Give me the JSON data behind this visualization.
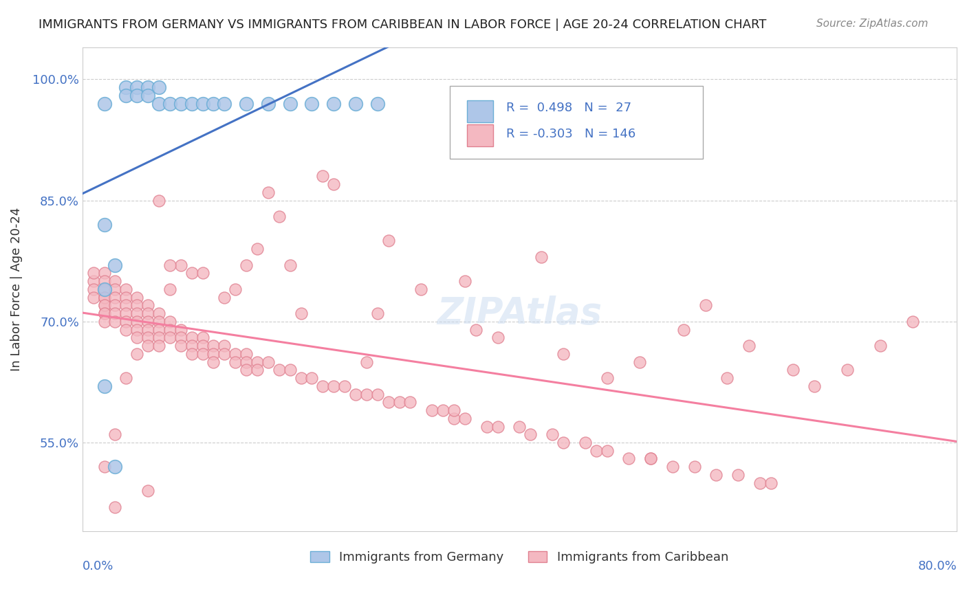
{
  "title": "IMMIGRANTS FROM GERMANY VS IMMIGRANTS FROM CARIBBEAN IN LABOR FORCE | AGE 20-24 CORRELATION CHART",
  "source": "Source: ZipAtlas.com",
  "xlabel_bottom_left": "0.0%",
  "xlabel_bottom_right": "80.0%",
  "ylabel": "In Labor Force | Age 20-24",
  "y_ticks": [
    55.0,
    70.0,
    85.0,
    100.0
  ],
  "y_tick_labels": [
    "55.0%",
    "70.0%",
    "85.0%",
    "100.0%"
  ],
  "xlim": [
    0.0,
    0.8
  ],
  "ylim": [
    0.44,
    1.04
  ],
  "germany_color": "#aec6e8",
  "germany_edge_color": "#6baed6",
  "caribbean_color": "#f4b8c1",
  "caribbean_edge_color": "#e08090",
  "trend_germany_color": "#4472c4",
  "trend_caribbean_color": "#f47fa0",
  "legend_r_germany": "0.498",
  "legend_n_germany": "27",
  "legend_r_caribbean": "-0.303",
  "legend_n_caribbean": "146",
  "legend_label_germany": "Immigrants from Germany",
  "legend_label_caribbean": "Immigrants from Caribbean",
  "title_color": "#222222",
  "axis_color": "#4472c4",
  "grid_color": "#cccccc",
  "background_color": "#ffffff",
  "germany_x": [
    0.02,
    0.04,
    0.05,
    0.06,
    0.07,
    0.04,
    0.05,
    0.06,
    0.07,
    0.08,
    0.09,
    0.1,
    0.11,
    0.12,
    0.13,
    0.15,
    0.17,
    0.19,
    0.21,
    0.23,
    0.25,
    0.27,
    0.02,
    0.03,
    0.02,
    0.03,
    0.02
  ],
  "germany_y": [
    0.97,
    0.99,
    0.99,
    0.99,
    0.99,
    0.98,
    0.98,
    0.98,
    0.97,
    0.97,
    0.97,
    0.97,
    0.97,
    0.97,
    0.97,
    0.97,
    0.97,
    0.97,
    0.97,
    0.97,
    0.97,
    0.97,
    0.82,
    0.77,
    0.62,
    0.52,
    0.74
  ],
  "caribbean_x": [
    0.01,
    0.01,
    0.01,
    0.01,
    0.02,
    0.02,
    0.02,
    0.02,
    0.02,
    0.02,
    0.02,
    0.02,
    0.02,
    0.02,
    0.03,
    0.03,
    0.03,
    0.03,
    0.03,
    0.03,
    0.04,
    0.04,
    0.04,
    0.04,
    0.04,
    0.04,
    0.05,
    0.05,
    0.05,
    0.05,
    0.05,
    0.05,
    0.06,
    0.06,
    0.06,
    0.06,
    0.06,
    0.06,
    0.07,
    0.07,
    0.07,
    0.07,
    0.07,
    0.08,
    0.08,
    0.08,
    0.09,
    0.09,
    0.09,
    0.1,
    0.1,
    0.1,
    0.11,
    0.11,
    0.11,
    0.12,
    0.12,
    0.12,
    0.13,
    0.13,
    0.14,
    0.14,
    0.15,
    0.15,
    0.15,
    0.16,
    0.16,
    0.17,
    0.18,
    0.19,
    0.2,
    0.21,
    0.22,
    0.23,
    0.24,
    0.25,
    0.26,
    0.27,
    0.28,
    0.29,
    0.3,
    0.32,
    0.33,
    0.34,
    0.35,
    0.37,
    0.38,
    0.4,
    0.41,
    0.43,
    0.44,
    0.46,
    0.47,
    0.48,
    0.5,
    0.52,
    0.54,
    0.56,
    0.58,
    0.6,
    0.62,
    0.63,
    0.55,
    0.65,
    0.57,
    0.61,
    0.35,
    0.42,
    0.28,
    0.18,
    0.23,
    0.16,
    0.09,
    0.13,
    0.07,
    0.08,
    0.1,
    0.14,
    0.17,
    0.22,
    0.19,
    0.38,
    0.48,
    0.27,
    0.31,
    0.36,
    0.44,
    0.51,
    0.59,
    0.67,
    0.7,
    0.73,
    0.76,
    0.11,
    0.06,
    0.04,
    0.03,
    0.52,
    0.34,
    0.26,
    0.2,
    0.15,
    0.08,
    0.05,
    0.03,
    0.02
  ],
  "caribbean_y": [
    0.75,
    0.76,
    0.74,
    0.73,
    0.76,
    0.75,
    0.74,
    0.73,
    0.72,
    0.71,
    0.73,
    0.72,
    0.71,
    0.7,
    0.75,
    0.74,
    0.73,
    0.72,
    0.71,
    0.7,
    0.74,
    0.73,
    0.72,
    0.71,
    0.7,
    0.69,
    0.73,
    0.72,
    0.71,
    0.7,
    0.69,
    0.68,
    0.72,
    0.71,
    0.7,
    0.69,
    0.68,
    0.67,
    0.71,
    0.7,
    0.69,
    0.68,
    0.67,
    0.7,
    0.69,
    0.68,
    0.69,
    0.68,
    0.67,
    0.68,
    0.67,
    0.66,
    0.68,
    0.67,
    0.66,
    0.67,
    0.66,
    0.65,
    0.67,
    0.66,
    0.66,
    0.65,
    0.66,
    0.65,
    0.64,
    0.65,
    0.64,
    0.65,
    0.64,
    0.64,
    0.63,
    0.63,
    0.62,
    0.62,
    0.62,
    0.61,
    0.61,
    0.61,
    0.6,
    0.6,
    0.6,
    0.59,
    0.59,
    0.58,
    0.58,
    0.57,
    0.57,
    0.57,
    0.56,
    0.56,
    0.55,
    0.55,
    0.54,
    0.54,
    0.53,
    0.53,
    0.52,
    0.52,
    0.51,
    0.51,
    0.5,
    0.5,
    0.69,
    0.64,
    0.72,
    0.67,
    0.75,
    0.78,
    0.8,
    0.83,
    0.87,
    0.79,
    0.77,
    0.73,
    0.85,
    0.77,
    0.76,
    0.74,
    0.86,
    0.88,
    0.77,
    0.68,
    0.63,
    0.71,
    0.74,
    0.69,
    0.66,
    0.65,
    0.63,
    0.62,
    0.64,
    0.67,
    0.7,
    0.76,
    0.49,
    0.63,
    0.56,
    0.53,
    0.59,
    0.65,
    0.71,
    0.77,
    0.74,
    0.66,
    0.47,
    0.52
  ]
}
